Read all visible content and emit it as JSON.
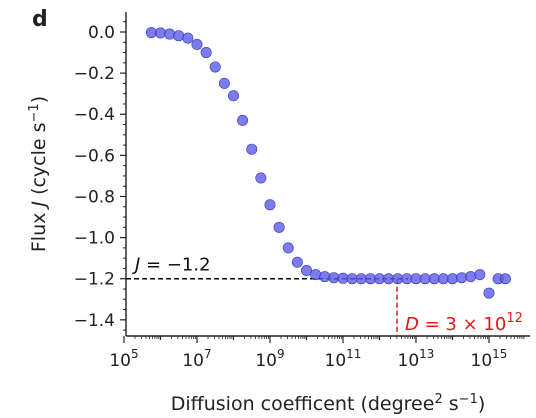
{
  "panel_label": "d",
  "colors": {
    "points": "#5b5bea",
    "point_edge": "#3a3ab0",
    "ref_line": "#000000",
    "highlight": "#e0161b",
    "axis": "#222222"
  },
  "chart_data": {
    "type": "scatter",
    "title": "",
    "xlabel": "Diffusion coefficent (degree² s⁻¹)",
    "ylabel": "Flux J (cycle s⁻¹)",
    "xscale": "log",
    "xlim_log10": [
      5,
      15.8
    ],
    "ylim": [
      -1.5,
      0.1
    ],
    "x_ticks": [
      {
        "exp": 5,
        "base": "10",
        "sup": "5"
      },
      {
        "exp": 7,
        "base": "10",
        "sup": "7"
      },
      {
        "exp": 9,
        "base": "10",
        "sup": "9"
      },
      {
        "exp": 11,
        "base": "10",
        "sup": "11"
      },
      {
        "exp": 13,
        "base": "10",
        "sup": "13"
      },
      {
        "exp": 15,
        "base": "10",
        "sup": "15"
      }
    ],
    "y_ticks": [
      {
        "v": 0.0,
        "label": "0.0"
      },
      {
        "v": -0.2,
        "label": "−0.2"
      },
      {
        "v": -0.4,
        "label": "−0.4"
      },
      {
        "v": -0.6,
        "label": "−0.6"
      },
      {
        "v": -0.8,
        "label": "−0.8"
      },
      {
        "v": -1.0,
        "label": "−1.0"
      },
      {
        "v": -1.2,
        "label": "−1.2"
      },
      {
        "v": -1.4,
        "label": "−1.4"
      }
    ],
    "series": [
      {
        "name": "flux",
        "log10_x": [
          5.75,
          6.0,
          6.25,
          6.5,
          6.75,
          7.0,
          7.25,
          7.5,
          7.75,
          8.0,
          8.25,
          8.5,
          8.75,
          9.0,
          9.25,
          9.5,
          9.75,
          10.0,
          10.25,
          10.5,
          10.75,
          11.0,
          11.25,
          11.5,
          11.75,
          12.0,
          12.25,
          12.5,
          12.75,
          13.0,
          13.25,
          13.5,
          13.75,
          14.0,
          14.25,
          14.5,
          14.75,
          15.0,
          15.25
        ],
        "y": [
          -0.003,
          -0.005,
          -0.01,
          -0.018,
          -0.03,
          -0.06,
          -0.1,
          -0.17,
          -0.25,
          -0.31,
          -0.43,
          -0.57,
          -0.71,
          -0.84,
          -0.95,
          -1.05,
          -1.12,
          -1.16,
          -1.18,
          -1.19,
          -1.195,
          -1.198,
          -1.2,
          -1.2,
          -1.2,
          -1.2,
          -1.2,
          -1.2,
          -1.2,
          -1.2,
          -1.2,
          -1.2,
          -1.2,
          -1.2,
          -1.195,
          -1.19,
          -1.18,
          -1.27,
          -1.2
        ]
      }
    ],
    "extra_points": [
      {
        "log10_x": 15.45,
        "y": -1.2
      }
    ],
    "reference_line": {
      "y": -1.2,
      "x_end_log10": 12.78
    },
    "highlight_line": {
      "log10_x": 12.48,
      "y_top": -1.2
    },
    "annotations": {
      "j": {
        "italic": "J",
        "rest": " = −1.2"
      },
      "d": {
        "italic": "D",
        "rest": " = 3 × 10",
        "sup": "12"
      }
    }
  }
}
